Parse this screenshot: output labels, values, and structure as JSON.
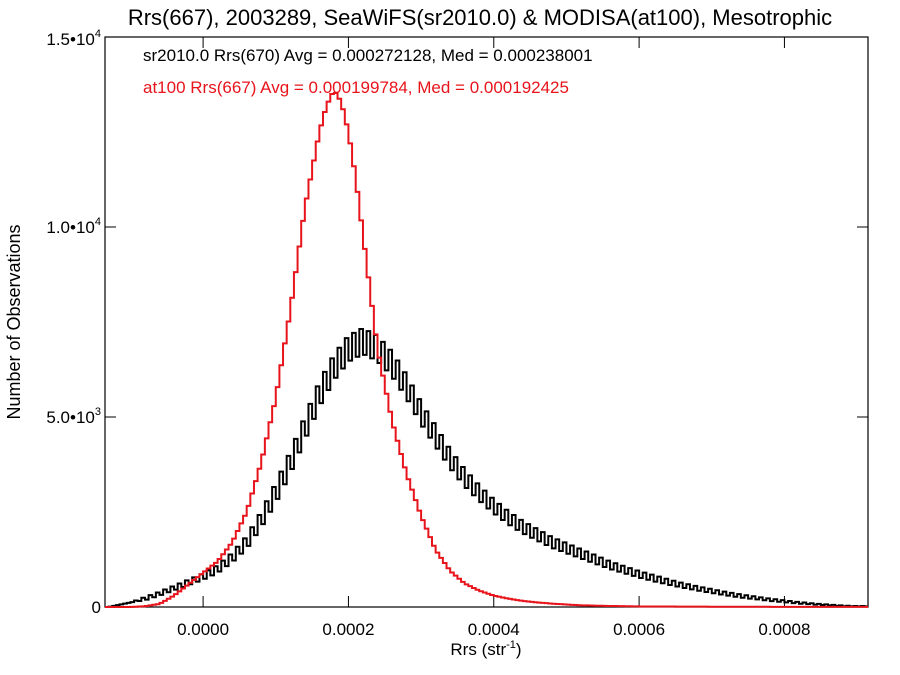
{
  "chart_data": {
    "type": "line",
    "title": "Rrs(667), 2003289, SeaWiFS(sr2010.0) & MODISA(at100), Mesotrophic",
    "xlabel": "Rrs (str⁻¹)",
    "xlabel_base": "Rrs (str",
    "xlabel_sup": "-1",
    "xlabel_close": ")",
    "ylabel": "Number of Observations",
    "xlim": [
      -0.000135,
      0.000915
    ],
    "ylim": [
      0,
      15000
    ],
    "x_ticks": [
      {
        "value": 0.0,
        "label": "0.0000"
      },
      {
        "value": 0.0002,
        "label": "0.0002"
      },
      {
        "value": 0.0004,
        "label": "0.0004"
      },
      {
        "value": 0.0006,
        "label": "0.0006"
      },
      {
        "value": 0.0008,
        "label": "0.0008"
      }
    ],
    "y_ticks": [
      {
        "value": 0,
        "label": "0",
        "sup": ""
      },
      {
        "value": 5000,
        "label": "5.0•10",
        "sup": "3"
      },
      {
        "value": 10000,
        "label": "1.0•10",
        "sup": "4"
      },
      {
        "value": 15000,
        "label": "1.5•10",
        "sup": "4"
      }
    ],
    "annotations": [
      {
        "text": "sr2010.0 Rrs(670) Avg = 0.000272128, Med = 0.000238001",
        "color": "#000000"
      },
      {
        "text": "at100 Rrs(667) Avg = 0.000199784, Med = 0.000192425",
        "color": "#e8141c"
      }
    ],
    "series": [
      {
        "color": "#000000",
        "x": [
          -0.00013,
          -0.0001,
          -8e-05,
          -6e-05,
          -4e-05,
          -2e-05,
          0.0,
          2e-05,
          4e-05,
          6e-05,
          8e-05,
          0.0001,
          0.00012,
          0.00014,
          0.00016,
          0.00018,
          0.0002,
          0.00022,
          0.00024,
          0.00026,
          0.00028,
          0.0003,
          0.00032,
          0.00034,
          0.00036,
          0.00038,
          0.0004,
          0.00042,
          0.00044,
          0.00046,
          0.00048,
          0.0005,
          0.00052,
          0.00054,
          0.00056,
          0.00058,
          0.0006,
          0.00062,
          0.00064,
          0.00066,
          0.00068,
          0.0007,
          0.00072,
          0.00074,
          0.00076,
          0.00078,
          0.0008,
          0.00082,
          0.00084,
          0.00086,
          0.00088,
          0.0009
        ],
        "values": [
          0,
          120,
          220,
          350,
          500,
          650,
          800,
          1000,
          1300,
          1700,
          2300,
          3000,
          3800,
          4700,
          5600,
          6300,
          6800,
          7000,
          6800,
          6400,
          5800,
          5100,
          4500,
          3900,
          3400,
          3000,
          2650,
          2350,
          2100,
          1900,
          1700,
          1550,
          1400,
          1250,
          1100,
          980,
          860,
          760,
          660,
          570,
          490,
          420,
          350,
          290,
          240,
          190,
          150,
          110,
          80,
          55,
          30,
          20
        ],
        "spread": [
          0,
          0,
          40,
          50,
          60,
          70,
          80,
          100,
          120,
          160,
          200,
          250,
          280,
          300,
          320,
          330,
          340,
          340,
          330,
          320,
          300,
          280,
          260,
          240,
          220,
          200,
          180,
          170,
          160,
          150,
          140,
          130,
          120,
          110,
          100,
          90,
          85,
          80,
          70,
          60,
          55,
          50,
          45,
          40,
          35,
          30,
          25,
          20,
          15,
          10,
          10,
          5
        ]
      },
      {
        "color": "#e8141c",
        "x": [
          -0.00013,
          -0.0001,
          -8e-05,
          -6e-05,
          -4e-05,
          -2e-05,
          0.0,
          2e-05,
          4e-05,
          6e-05,
          8e-05,
          0.0001,
          0.00012,
          0.00014,
          0.00016,
          0.00017,
          0.00018,
          0.00019,
          0.0002,
          0.00021,
          0.00022,
          0.00024,
          0.00026,
          0.00028,
          0.0003,
          0.00032,
          0.00034,
          0.00036,
          0.00038,
          0.0004,
          0.00042,
          0.00044,
          0.00046,
          0.00048,
          0.0005,
          0.00052,
          0.00055,
          0.0006,
          0.0007,
          0.0008,
          0.0009
        ],
        "values": [
          0,
          0,
          20,
          80,
          300,
          600,
          900,
          1200,
          1700,
          2500,
          3800,
          5500,
          7800,
          10500,
          12500,
          13200,
          13600,
          13300,
          12500,
          11300,
          9800,
          6800,
          4900,
          3500,
          2400,
          1500,
          950,
          620,
          430,
          300,
          220,
          160,
          120,
          90,
          65,
          45,
          30,
          15,
          8,
          4,
          2
        ]
      }
    ]
  }
}
